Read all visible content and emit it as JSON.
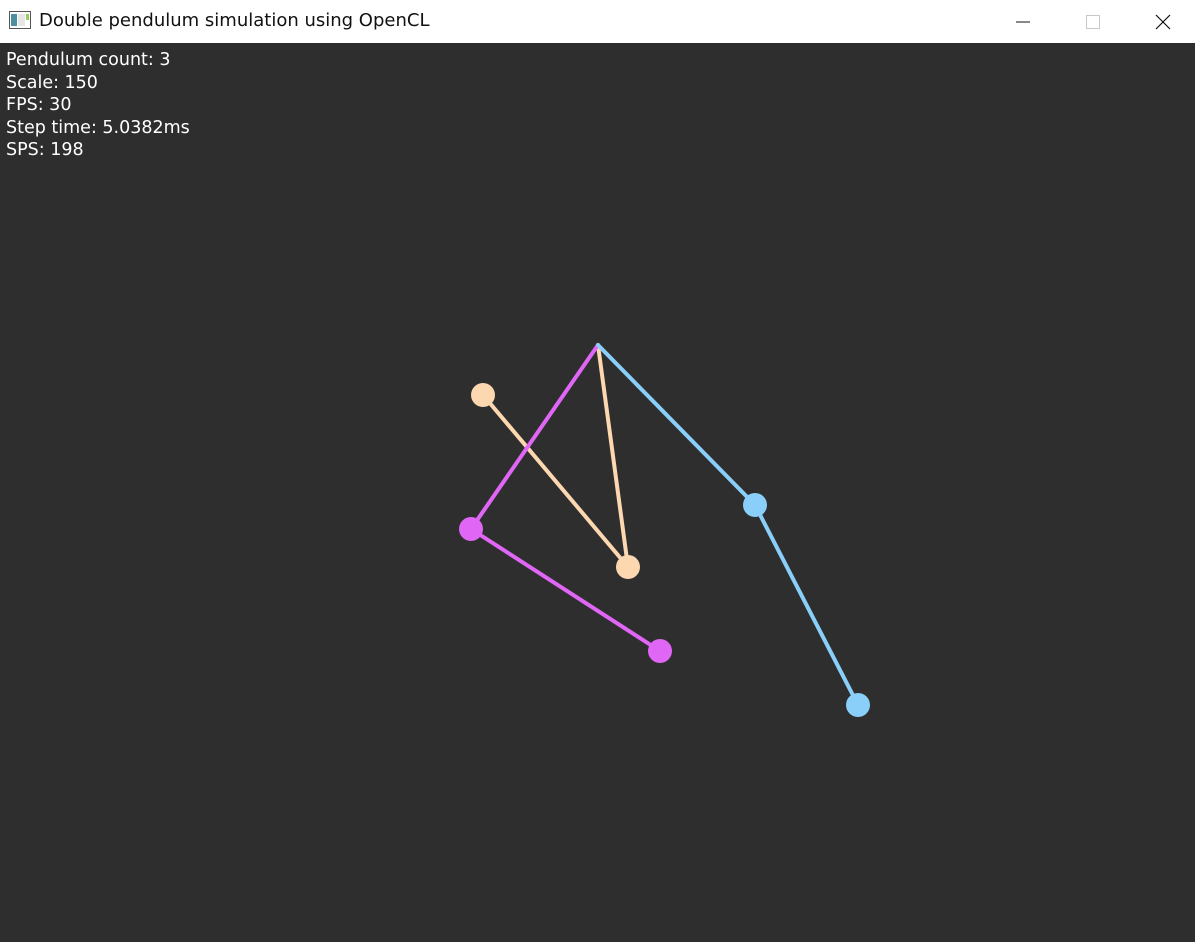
{
  "window": {
    "title": "Double pendulum simulation using OpenCL",
    "icon": "app-window-icon",
    "controls": {
      "minimize_icon": "minimize-icon",
      "maximize_icon": "maximize-icon",
      "close_icon": "close-icon"
    }
  },
  "stats": {
    "pendulum_count": "Pendulum count: 3",
    "scale": "Scale: 150",
    "fps": "FPS: 30",
    "step_time": "Step time: 5.0382ms",
    "sps": "SPS: 198"
  },
  "colors": {
    "background": "#2e2e2e",
    "titlebar": "#ffffff",
    "text": "#ffffff",
    "pendulum_orange": "#fdd7b0",
    "pendulum_magenta": "#e066f5",
    "pendulum_blue": "#89cff9"
  },
  "pendulums": [
    {
      "name": "pendulum-orange",
      "color": "#fdd7b0"
    },
    {
      "name": "pendulum-magenta",
      "color": "#e066f5"
    },
    {
      "name": "pendulum-blue",
      "color": "#89cff9"
    }
  ]
}
